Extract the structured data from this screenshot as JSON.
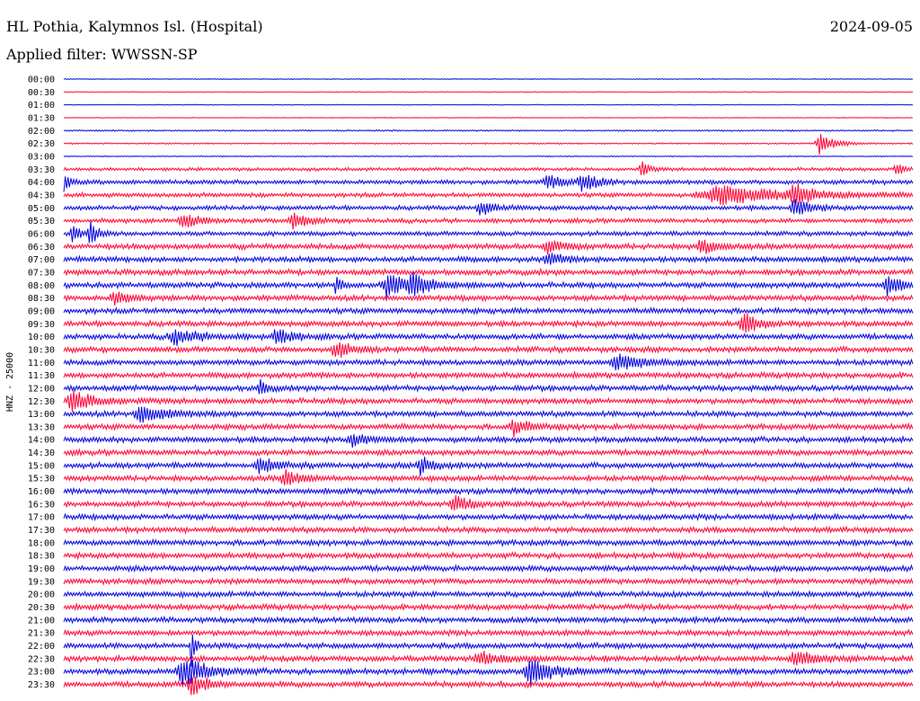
{
  "header": {
    "station_title": "HL Pothia, Kalymnos Isl. (Hospital)",
    "date": "2024-09-05",
    "filter_label": "Applied filter: WWSSN-SP"
  },
  "chart_data": {
    "type": "line",
    "title": "HL Pothia, Kalymnos Isl. (Hospital)",
    "subtitle": "Applied filter: WWSSN-SP",
    "ylabel": "HNZ - 25000",
    "xlabel": "",
    "colors": {
      "even_trace": "#0000dd",
      "odd_trace": "#ff0033"
    },
    "rows": [
      "00:00",
      "00:30",
      "01:00",
      "01:30",
      "02:00",
      "02:30",
      "03:00",
      "03:30",
      "04:00",
      "04:30",
      "05:00",
      "05:30",
      "06:00",
      "06:30",
      "07:00",
      "07:30",
      "08:00",
      "08:30",
      "09:00",
      "09:30",
      "10:00",
      "10:30",
      "11:00",
      "11:30",
      "12:00",
      "12:30",
      "13:00",
      "13:30",
      "14:00",
      "14:30",
      "15:00",
      "15:30",
      "16:00",
      "16:30",
      "17:00",
      "17:30",
      "18:00",
      "18:30",
      "19:00",
      "19:30",
      "20:00",
      "20:30",
      "21:00",
      "21:30",
      "22:00",
      "22:30",
      "23:00",
      "23:30"
    ],
    "noise_level": [
      0.4,
      0.4,
      0.4,
      0.4,
      0.7,
      0.7,
      0.5,
      1.5,
      2.0,
      2.0,
      2.0,
      2.0,
      2.0,
      2.5,
      2.5,
      2.5,
      2.5,
      2.5,
      2.5,
      2.5,
      2.5,
      2.5,
      2.5,
      2.5,
      2.5,
      2.5,
      2.5,
      2.5,
      2.5,
      2.5,
      2.5,
      2.5,
      2.5,
      2.5,
      2.5,
      2.5,
      2.5,
      2.5,
      2.5,
      2.5,
      2.5,
      2.5,
      2.5,
      2.5,
      2.5,
      2.5,
      2.5,
      2.5
    ],
    "events": [
      {
        "row": 5,
        "t": 0.89,
        "amp": 12,
        "dur": 0.02
      },
      {
        "row": 7,
        "t": 0.68,
        "amp": 9,
        "dur": 0.01
      },
      {
        "row": 7,
        "t": 0.98,
        "amp": 8,
        "dur": 0.01
      },
      {
        "row": 8,
        "t": 0.0,
        "amp": 9,
        "dur": 0.01
      },
      {
        "row": 8,
        "t": 0.57,
        "amp": 8,
        "dur": 0.02
      },
      {
        "row": 8,
        "t": 0.61,
        "amp": 10,
        "dur": 0.02
      },
      {
        "row": 9,
        "t": 0.77,
        "amp": 10,
        "dur": 0.09
      },
      {
        "row": 9,
        "t": 0.86,
        "amp": 12,
        "dur": 0.02
      },
      {
        "row": 10,
        "t": 0.49,
        "amp": 8,
        "dur": 0.02
      },
      {
        "row": 10,
        "t": 0.86,
        "amp": 10,
        "dur": 0.02
      },
      {
        "row": 11,
        "t": 0.14,
        "amp": 9,
        "dur": 0.02
      },
      {
        "row": 11,
        "t": 0.27,
        "amp": 9,
        "dur": 0.02
      },
      {
        "row": 12,
        "t": 0.01,
        "amp": 10,
        "dur": 0.01
      },
      {
        "row": 12,
        "t": 0.03,
        "amp": 14,
        "dur": 0.01
      },
      {
        "row": 13,
        "t": 0.57,
        "amp": 8,
        "dur": 0.02
      },
      {
        "row": 13,
        "t": 0.75,
        "amp": 9,
        "dur": 0.02
      },
      {
        "row": 14,
        "t": 0.57,
        "amp": 7,
        "dur": 0.02
      },
      {
        "row": 16,
        "t": 0.32,
        "amp": 8,
        "dur": 0.01
      },
      {
        "row": 16,
        "t": 0.38,
        "amp": 12,
        "dur": 0.03
      },
      {
        "row": 16,
        "t": 0.41,
        "amp": 11,
        "dur": 0.02
      },
      {
        "row": 16,
        "t": 0.97,
        "amp": 11,
        "dur": 0.02
      },
      {
        "row": 17,
        "t": 0.06,
        "amp": 8,
        "dur": 0.02
      },
      {
        "row": 19,
        "t": 0.8,
        "amp": 12,
        "dur": 0.02
      },
      {
        "row": 20,
        "t": 0.13,
        "amp": 9,
        "dur": 0.03
      },
      {
        "row": 20,
        "t": 0.25,
        "amp": 9,
        "dur": 0.02
      },
      {
        "row": 21,
        "t": 0.32,
        "amp": 9,
        "dur": 0.02
      },
      {
        "row": 22,
        "t": 0.65,
        "amp": 10,
        "dur": 0.03
      },
      {
        "row": 24,
        "t": 0.23,
        "amp": 10,
        "dur": 0.01
      },
      {
        "row": 25,
        "t": 0.01,
        "amp": 11,
        "dur": 0.03
      },
      {
        "row": 26,
        "t": 0.09,
        "amp": 10,
        "dur": 0.03
      },
      {
        "row": 27,
        "t": 0.53,
        "amp": 9,
        "dur": 0.02
      },
      {
        "row": 28,
        "t": 0.34,
        "amp": 7,
        "dur": 0.02
      },
      {
        "row": 30,
        "t": 0.23,
        "amp": 9,
        "dur": 0.02
      },
      {
        "row": 30,
        "t": 0.42,
        "amp": 10,
        "dur": 0.02
      },
      {
        "row": 31,
        "t": 0.26,
        "amp": 9,
        "dur": 0.02
      },
      {
        "row": 33,
        "t": 0.46,
        "amp": 9,
        "dur": 0.02
      },
      {
        "row": 44,
        "t": 0.15,
        "amp": 30,
        "dur": 0.004
      },
      {
        "row": 45,
        "t": 0.49,
        "amp": 7,
        "dur": 0.03
      },
      {
        "row": 45,
        "t": 0.86,
        "amp": 8,
        "dur": 0.03
      },
      {
        "row": 46,
        "t": 0.14,
        "amp": 18,
        "dur": 0.03
      },
      {
        "row": 46,
        "t": 0.55,
        "amp": 16,
        "dur": 0.03
      },
      {
        "row": 47,
        "t": 0.15,
        "amp": 12,
        "dur": 0.02
      }
    ]
  }
}
